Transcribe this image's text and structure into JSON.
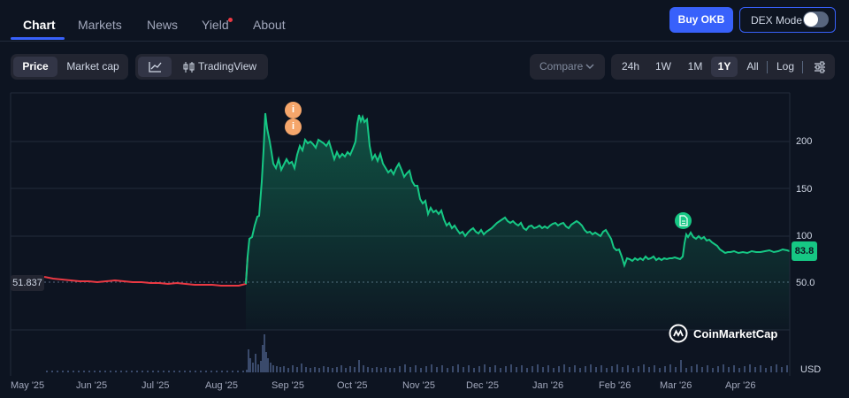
{
  "nav": {
    "tabs": [
      {
        "label": "Chart",
        "active": true
      },
      {
        "label": "Markets"
      },
      {
        "label": "News"
      },
      {
        "label": "Yield"
      },
      {
        "label": "About"
      }
    ],
    "buy_label": "Buy OKB",
    "dex_label": "DEX Mode",
    "dex_enabled": false
  },
  "toolbar": {
    "metric_tabs": [
      "Price",
      "Market cap"
    ],
    "metric_active": "Price",
    "tradingview_label": "TradingView",
    "compare_label": "Compare",
    "ranges": [
      "24h",
      "1W",
      "1M",
      "1Y",
      "All"
    ],
    "range_active": "1Y",
    "log_label": "Log"
  },
  "chart_data": {
    "type": "line",
    "y_ticks": [
      "200",
      "150",
      "100",
      "50.0"
    ],
    "ylim": [
      0,
      242
    ],
    "x_ticks": [
      "May '25",
      "Jun '25",
      "Jul '25",
      "Aug '25",
      "Sep '25",
      "Oct '25",
      "Nov '25",
      "Dec '25",
      "Jan '26",
      "Feb '26",
      "Mar '26",
      "Apr '26"
    ],
    "current_price": "83.8",
    "start_price": "51.837",
    "currency": "USD",
    "watermark": "CoinMarketCap",
    "up_color": "#16c784",
    "down_color": "#ea3943",
    "series_points": [
      [
        50,
        313
      ],
      [
        60,
        315
      ],
      [
        70,
        316
      ],
      [
        80,
        317
      ],
      [
        90,
        318
      ],
      [
        100,
        318
      ],
      [
        110,
        319
      ],
      [
        120,
        318
      ],
      [
        130,
        317
      ],
      [
        140,
        318
      ],
      [
        150,
        319
      ],
      [
        160,
        319
      ],
      [
        170,
        320
      ],
      [
        180,
        320
      ],
      [
        190,
        321
      ],
      [
        200,
        320
      ],
      [
        210,
        321
      ],
      [
        220,
        322
      ],
      [
        230,
        322
      ],
      [
        240,
        322
      ],
      [
        250,
        323
      ],
      [
        260,
        323
      ],
      [
        270,
        323
      ],
      [
        278,
        321
      ],
      [
        280,
        290
      ],
      [
        282,
        270
      ],
      [
        285,
        268
      ],
      [
        288,
        255
      ],
      [
        291,
        245
      ],
      [
        293,
        244
      ],
      [
        296,
        205
      ],
      [
        298,
        170
      ],
      [
        300,
        128
      ],
      [
        302,
        145
      ],
      [
        305,
        160
      ],
      [
        307,
        172
      ],
      [
        309,
        185
      ],
      [
        312,
        190
      ],
      [
        315,
        180
      ],
      [
        318,
        192
      ],
      [
        321,
        186
      ],
      [
        324,
        180
      ],
      [
        327,
        185
      ],
      [
        330,
        183
      ],
      [
        333,
        190
      ],
      [
        336,
        175
      ],
      [
        339,
        165
      ],
      [
        342,
        170
      ],
      [
        345,
        158
      ],
      [
        348,
        162
      ],
      [
        351,
        160
      ],
      [
        354,
        163
      ],
      [
        357,
        167
      ],
      [
        360,
        158
      ],
      [
        363,
        160
      ],
      [
        366,
        162
      ],
      [
        369,
        165
      ],
      [
        372,
        160
      ],
      [
        375,
        170
      ],
      [
        378,
        180
      ],
      [
        381,
        172
      ],
      [
        384,
        178
      ],
      [
        387,
        174
      ],
      [
        390,
        177
      ],
      [
        393,
        172
      ],
      [
        396,
        175
      ],
      [
        399,
        168
      ],
      [
        402,
        160
      ],
      [
        404,
        140
      ],
      [
        406,
        130
      ],
      [
        408,
        137
      ],
      [
        410,
        132
      ],
      [
        412,
        138
      ],
      [
        415,
        135
      ],
      [
        418,
        165
      ],
      [
        421,
        180
      ],
      [
        424,
        175
      ],
      [
        427,
        182
      ],
      [
        430,
        174
      ],
      [
        433,
        185
      ],
      [
        436,
        190
      ],
      [
        439,
        195
      ],
      [
        442,
        192
      ],
      [
        445,
        197
      ],
      [
        448,
        190
      ],
      [
        451,
        185
      ],
      [
        454,
        192
      ],
      [
        457,
        200
      ],
      [
        460,
        196
      ],
      [
        463,
        193
      ],
      [
        466,
        205
      ],
      [
        469,
        210
      ],
      [
        472,
        210
      ],
      [
        475,
        225
      ],
      [
        478,
        230
      ],
      [
        481,
        227
      ],
      [
        484,
        242
      ],
      [
        487,
        235
      ],
      [
        490,
        240
      ],
      [
        493,
        238
      ],
      [
        496,
        242
      ],
      [
        499,
        238
      ],
      [
        502,
        248
      ],
      [
        505,
        255
      ],
      [
        508,
        252
      ],
      [
        511,
        258
      ],
      [
        514,
        255
      ],
      [
        517,
        260
      ],
      [
        520,
        264
      ],
      [
        523,
        262
      ],
      [
        526,
        267
      ],
      [
        529,
        263
      ],
      [
        532,
        260
      ],
      [
        535,
        258
      ],
      [
        538,
        262
      ],
      [
        541,
        264
      ],
      [
        544,
        260
      ],
      [
        547,
        265
      ],
      [
        550,
        262
      ],
      [
        553,
        260
      ],
      [
        556,
        258
      ],
      [
        559,
        255
      ],
      [
        562,
        252
      ],
      [
        565,
        250
      ],
      [
        568,
        248
      ],
      [
        571,
        246
      ],
      [
        574,
        250
      ],
      [
        577,
        252
      ],
      [
        580,
        250
      ],
      [
        583,
        253
      ],
      [
        586,
        255
      ],
      [
        589,
        252
      ],
      [
        592,
        258
      ],
      [
        595,
        260
      ],
      [
        598,
        256
      ],
      [
        601,
        255
      ],
      [
        604,
        258
      ],
      [
        607,
        257
      ],
      [
        610,
        255
      ],
      [
        613,
        258
      ],
      [
        616,
        256
      ],
      [
        619,
        258
      ],
      [
        622,
        255
      ],
      [
        625,
        253
      ],
      [
        628,
        252
      ],
      [
        631,
        255
      ],
      [
        634,
        253
      ],
      [
        637,
        252
      ],
      [
        640,
        256
      ],
      [
        643,
        258
      ],
      [
        646,
        254
      ],
      [
        649,
        252
      ],
      [
        652,
        250
      ],
      [
        655,
        252
      ],
      [
        658,
        255
      ],
      [
        661,
        260
      ],
      [
        664,
        263
      ],
      [
        667,
        262
      ],
      [
        670,
        265
      ],
      [
        673,
        263
      ],
      [
        676,
        265
      ],
      [
        679,
        267
      ],
      [
        682,
        262
      ],
      [
        685,
        260
      ],
      [
        688,
        265
      ],
      [
        691,
        270
      ],
      [
        694,
        280
      ],
      [
        697,
        283
      ],
      [
        700,
        282
      ],
      [
        703,
        290
      ],
      [
        706,
        300
      ],
      [
        709,
        292
      ],
      [
        712,
        293
      ],
      [
        715,
        295
      ],
      [
        718,
        292
      ],
      [
        721,
        294
      ],
      [
        724,
        292
      ],
      [
        727,
        294
      ],
      [
        730,
        290
      ],
      [
        733,
        293
      ],
      [
        736,
        292
      ],
      [
        739,
        290
      ],
      [
        742,
        294
      ],
      [
        745,
        292
      ],
      [
        748,
        294
      ],
      [
        751,
        292
      ],
      [
        754,
        293
      ],
      [
        757,
        292
      ],
      [
        760,
        292
      ],
      [
        763,
        291
      ],
      [
        766,
        292
      ],
      [
        769,
        293
      ],
      [
        772,
        290
      ],
      [
        774,
        275
      ],
      [
        776,
        265
      ],
      [
        778,
        268
      ],
      [
        781,
        263
      ],
      [
        784,
        268
      ],
      [
        787,
        270
      ],
      [
        790,
        267
      ],
      [
        793,
        270
      ],
      [
        796,
        268
      ],
      [
        799,
        272
      ],
      [
        802,
        271
      ],
      [
        805,
        274
      ],
      [
        808,
        276
      ],
      [
        811,
        278
      ],
      [
        814,
        282
      ],
      [
        817,
        284
      ],
      [
        820,
        286
      ],
      [
        823,
        285
      ],
      [
        826,
        285
      ],
      [
        830,
        284
      ],
      [
        835,
        286
      ],
      [
        840,
        285
      ],
      [
        845,
        286
      ],
      [
        850,
        284
      ],
      [
        855,
        285
      ],
      [
        860,
        285
      ],
      [
        865,
        284
      ],
      [
        870,
        283
      ],
      [
        875,
        285
      ],
      [
        880,
        284
      ],
      [
        885,
        282
      ],
      [
        890,
        283
      ],
      [
        893,
        284
      ]
    ],
    "split_x": 278,
    "volume_points": [
      [
        278,
        418
      ],
      [
        280,
        395
      ],
      [
        282,
        405
      ],
      [
        285,
        410
      ],
      [
        288,
        400
      ],
      [
        291,
        412
      ],
      [
        294,
        408
      ],
      [
        296,
        390
      ],
      [
        298,
        378
      ],
      [
        300,
        398
      ],
      [
        302,
        405
      ],
      [
        305,
        410
      ],
      [
        308,
        413
      ],
      [
        312,
        414
      ],
      [
        316,
        415
      ],
      [
        320,
        414
      ],
      [
        325,
        416
      ],
      [
        330,
        413
      ],
      [
        335,
        415
      ],
      [
        340,
        411
      ],
      [
        345,
        415
      ],
      [
        350,
        416
      ],
      [
        355,
        415
      ],
      [
        360,
        416
      ],
      [
        365,
        414
      ],
      [
        370,
        415
      ],
      [
        375,
        416
      ],
      [
        380,
        415
      ],
      [
        385,
        413
      ],
      [
        390,
        416
      ],
      [
        395,
        414
      ],
      [
        400,
        415
      ],
      [
        405,
        407
      ],
      [
        410,
        413
      ],
      [
        415,
        415
      ],
      [
        420,
        416
      ],
      [
        425,
        415
      ],
      [
        430,
        416
      ],
      [
        435,
        415
      ],
      [
        440,
        416
      ]
    ]
  }
}
